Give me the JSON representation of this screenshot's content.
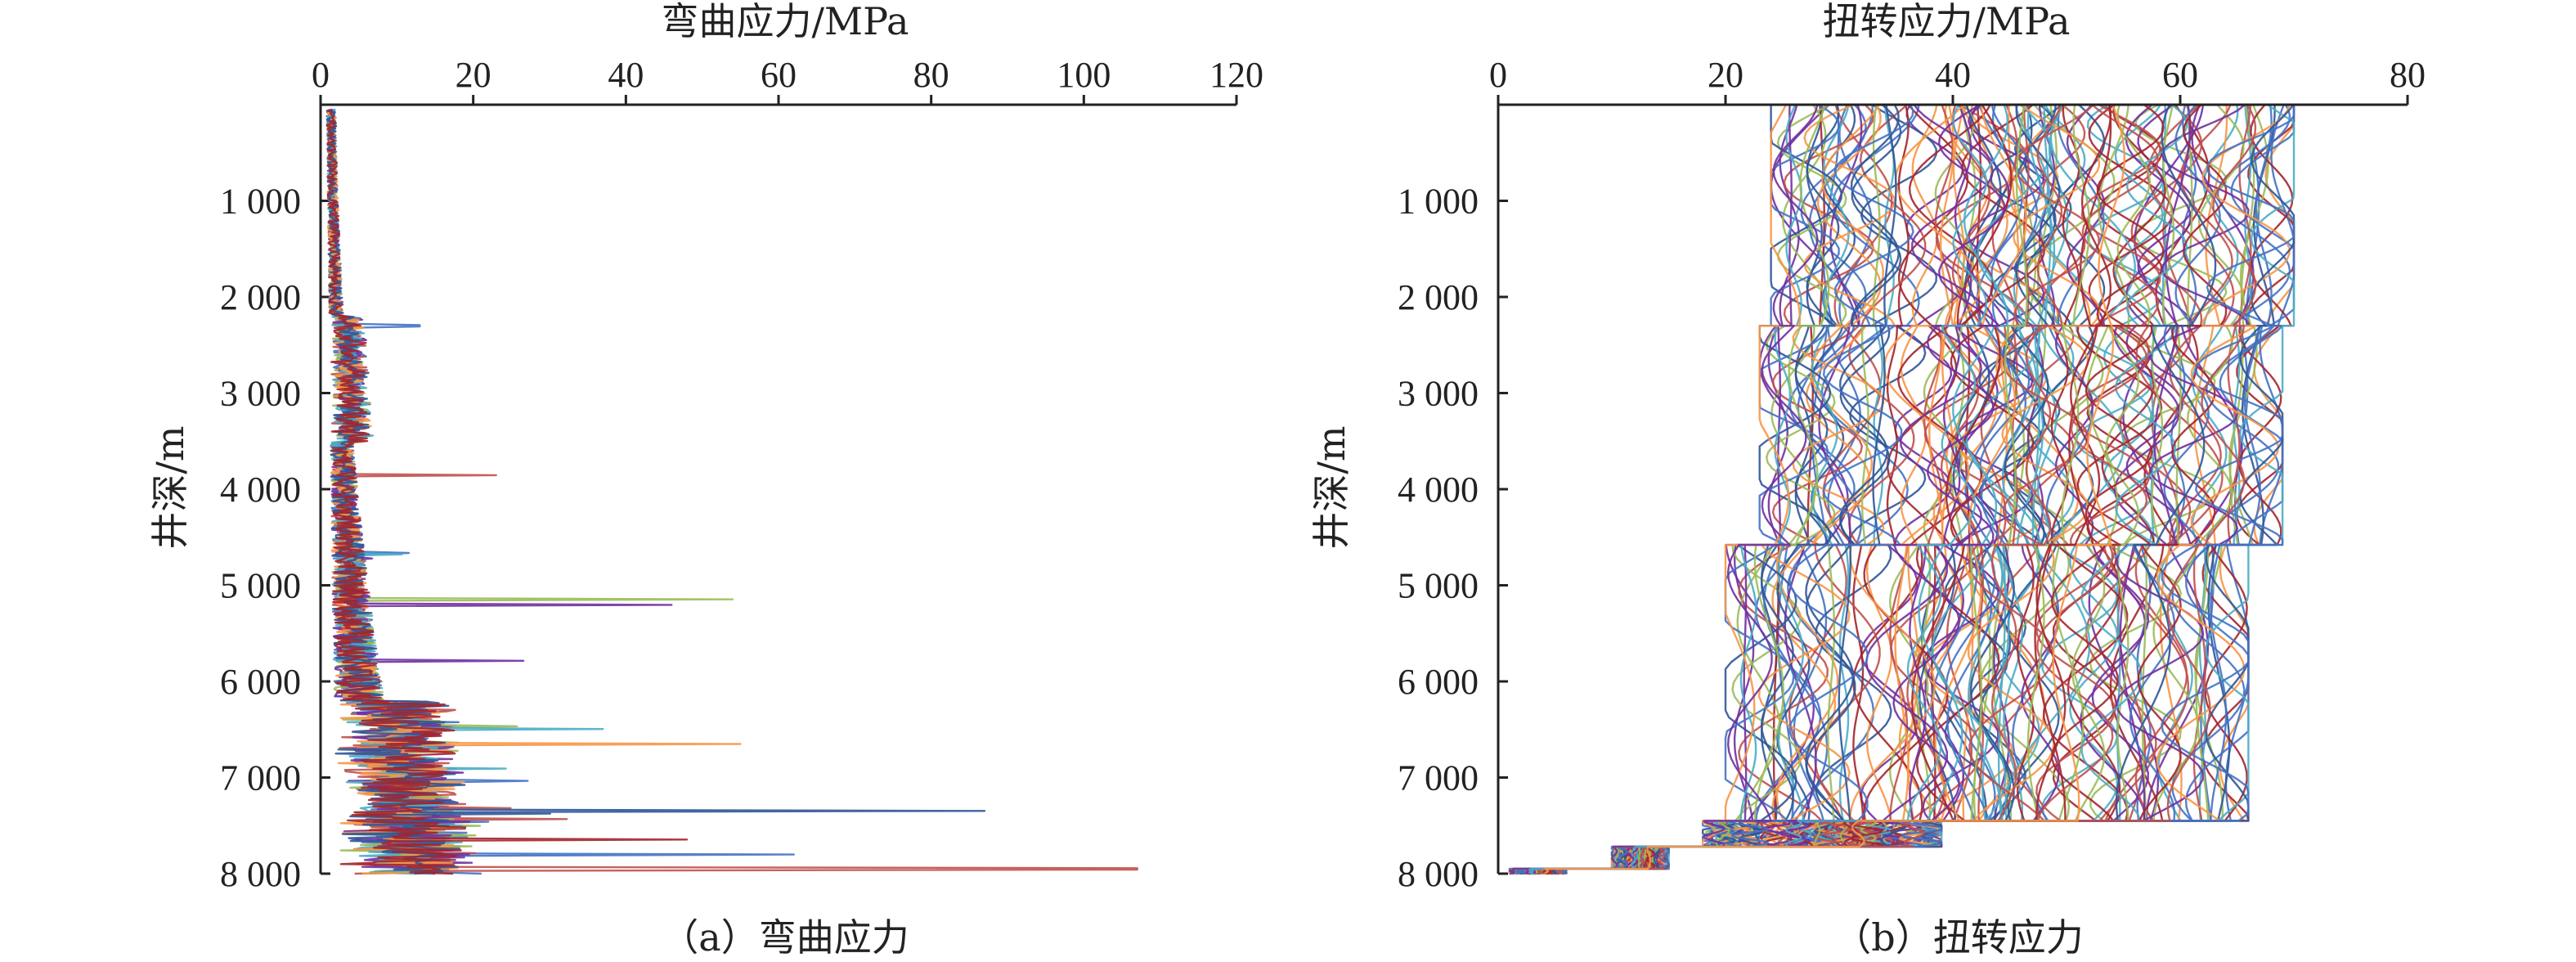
{
  "chart_data": [
    {
      "type": "line",
      "panel": "a",
      "title": "弯曲应力/MPa",
      "ylabel": "井深/m",
      "caption": "（a）弯曲应力",
      "xlim": [
        0,
        120
      ],
      "ylim": [
        0,
        8000
      ],
      "y_inverted": true,
      "x_axis_position": "top",
      "x_ticks": [
        0,
        20,
        40,
        60,
        80,
        100,
        120
      ],
      "x_tick_labels": [
        "0",
        "20",
        "40",
        "60",
        "80",
        "100",
        "120"
      ],
      "y_ticks": [
        1000,
        2000,
        3000,
        4000,
        5000,
        6000,
        7000,
        8000
      ],
      "y_tick_labels": [
        "1 000",
        "2 000",
        "3 000",
        "4 000",
        "5 000",
        "6 000",
        "7 000",
        "8 000"
      ],
      "grid": false,
      "legend": "none",
      "palette": [
        "#4472c4",
        "#c0504d",
        "#9bbb59",
        "#7030a0",
        "#4bacc6",
        "#f79646",
        "#2f5597",
        "#a3252c"
      ],
      "spikes": [
        {
          "depth": 2300,
          "value": 13
        },
        {
          "depth": 3850,
          "value": 23
        },
        {
          "depth": 5150,
          "value": 54
        },
        {
          "depth": 5200,
          "value": 46
        },
        {
          "depth": 6500,
          "value": 37
        },
        {
          "depth": 6650,
          "value": 55
        },
        {
          "depth": 7350,
          "value": 87
        },
        {
          "depth": 7650,
          "value": 48
        },
        {
          "depth": 7800,
          "value": 62
        },
        {
          "depth": 7950,
          "value": 107
        }
      ],
      "series_count": 8
    },
    {
      "type": "line",
      "panel": "b",
      "title": "扭转应力/MPa",
      "ylabel": "井深/m",
      "caption": "（b）扭转应力",
      "xlim": [
        0,
        80
      ],
      "ylim": [
        0,
        8000
      ],
      "y_inverted": true,
      "x_axis_position": "top",
      "x_ticks": [
        0,
        20,
        40,
        60,
        80
      ],
      "x_tick_labels": [
        "0",
        "20",
        "40",
        "60",
        "80"
      ],
      "y_ticks": [
        1000,
        2000,
        3000,
        4000,
        5000,
        6000,
        7000,
        8000
      ],
      "y_tick_labels": [
        "1 000",
        "2 000",
        "3 000",
        "4 000",
        "5 000",
        "6 000",
        "7 000",
        "8 000"
      ],
      "grid": false,
      "legend": "none",
      "palette": [
        "#4472c4",
        "#c0504d",
        "#9bbb59",
        "#7030a0",
        "#4bacc6",
        "#f79646",
        "#2f5597",
        "#a3252c"
      ],
      "segments": [
        {
          "from": 0,
          "to": 2300,
          "min": 24,
          "max": 70
        },
        {
          "from": 2300,
          "to": 4580,
          "min": 23,
          "max": 69
        },
        {
          "from": 4580,
          "to": 7450,
          "min": 20,
          "max": 66
        },
        {
          "from": 7450,
          "to": 7720,
          "min": 18,
          "max": 39
        },
        {
          "from": 7720,
          "to": 7950,
          "min": 10,
          "max": 15
        },
        {
          "from": 7950,
          "to": 8000,
          "min": 1,
          "max": 6
        }
      ],
      "series_count": 150
    }
  ]
}
